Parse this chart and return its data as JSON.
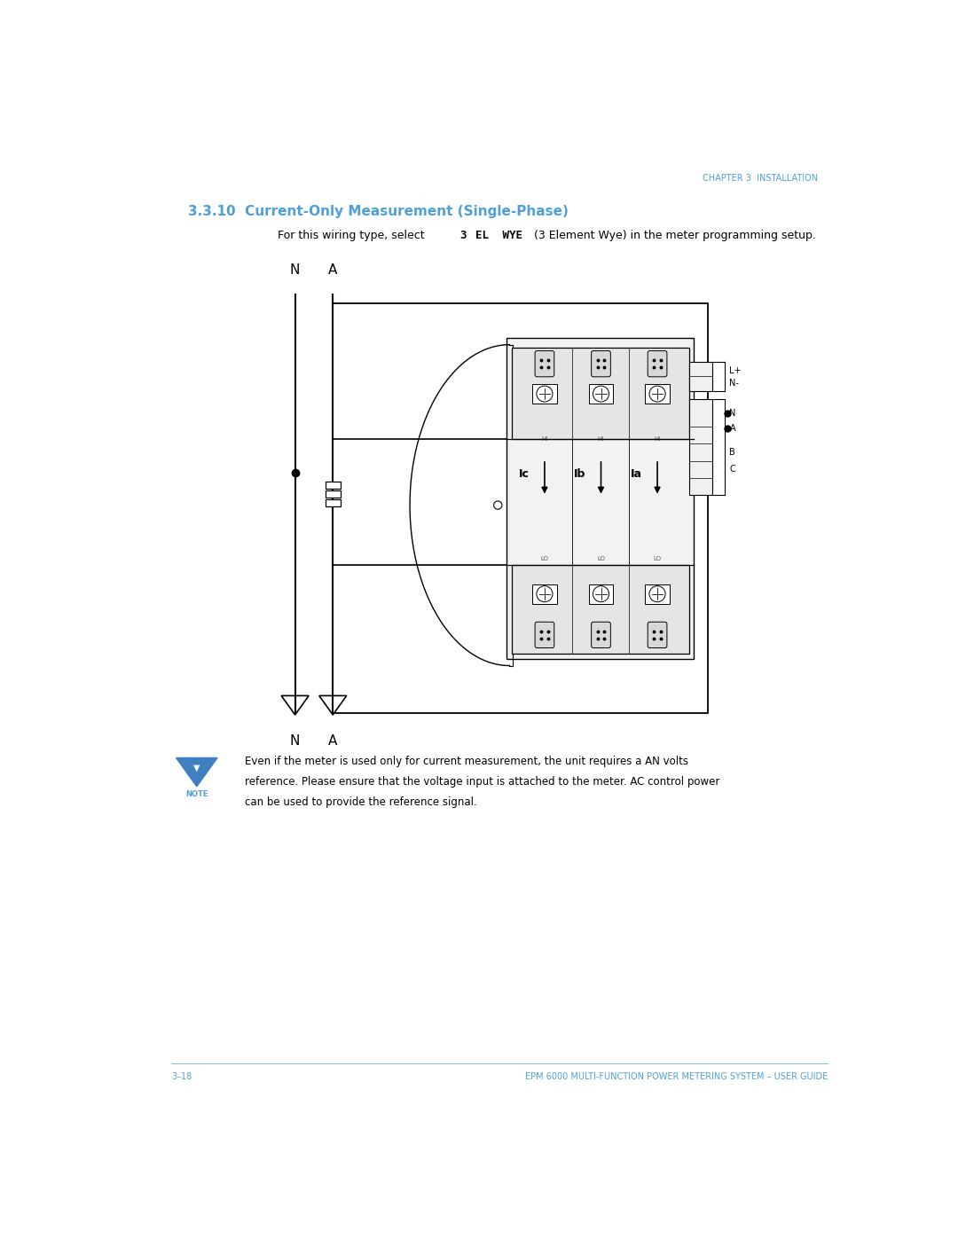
{
  "page_width": 10.8,
  "page_height": 13.97,
  "bg_color": "#ffffff",
  "header_text": "CHAPTER 3  INSTALLATION",
  "header_color": "#4fa0d8",
  "header_fontsize": 7,
  "section_title": "3.3.10  Current-Only Measurement (Single-Phase)",
  "section_title_color": "#4fa0d8",
  "section_title_fontsize": 11,
  "body_fontsize": 9,
  "note_text_line1": "Even if the meter is used only for current measurement, the unit requires a AN volts",
  "note_text_line2": "reference. Please ensure that the voltage input is attached to the meter. AC control power",
  "note_text_line3": "can be used to provide the reference signal.",
  "note_fontsize": 8.5,
  "footer_left": "3–18",
  "footer_right": "EPM 6000 MULTI-FUNCTION POWER METERING SYSTEM – USER GUIDE",
  "footer_color": "#4fa0d8",
  "footer_fontsize": 7,
  "lc": "#000000",
  "lc_gray": "#888888",
  "lc_lgray": "#cccccc"
}
